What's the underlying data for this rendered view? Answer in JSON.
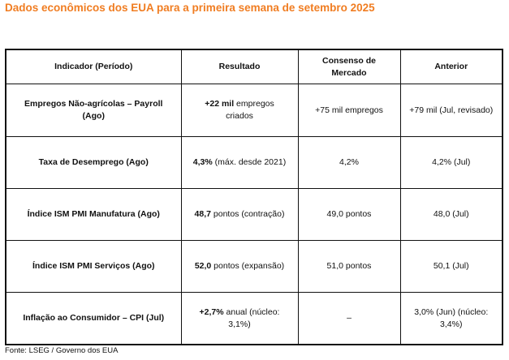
{
  "title": "Dados econômicos dos EUA para a primeira semana de setembro 2025",
  "table": {
    "headers": {
      "indicador": "Indicador (Período)",
      "resultado": "Resultado",
      "consenso": "Consenso de Mercado",
      "anterior": "Anterior"
    },
    "rows": [
      {
        "indicador": "Empregos Não-agrícolas – Payroll (Ago)",
        "resultado_strong": "+22 mil",
        "resultado_rest": " empregos criados",
        "consenso": "+75 mil empregos",
        "anterior": "+79 mil (Jul, revisado)"
      },
      {
        "indicador": "Taxa de Desemprego (Ago)",
        "resultado_strong": "4,3%",
        "resultado_rest": " (máx. desde 2021)",
        "consenso": "4,2%",
        "anterior": "4,2% (Jul)"
      },
      {
        "indicador": "Índice ISM PMI Manufatura (Ago)",
        "resultado_strong": "48,7",
        "resultado_rest": " pontos (contração)",
        "consenso": "49,0 pontos",
        "anterior": "48,0 (Jul)"
      },
      {
        "indicador": "Índice ISM PMI Serviços (Ago)",
        "resultado_strong": "52,0",
        "resultado_rest": " pontos (expansão)",
        "consenso": "51,0 pontos",
        "anterior": "50,1 (Jul)"
      },
      {
        "indicador": "Inflação ao Consumidor – CPI (Jul)",
        "resultado_strong": "+2,7%",
        "resultado_rest": " anual (núcleo: 3,1%)",
        "consenso": "–",
        "anterior": "3,0% (Jun) (núcleo: 3,4%)"
      }
    ]
  },
  "source": "Fonte: LSEG / Governo dos EUA",
  "colors": {
    "title": "#f07d22",
    "text": "#111111",
    "border": "#111111"
  }
}
